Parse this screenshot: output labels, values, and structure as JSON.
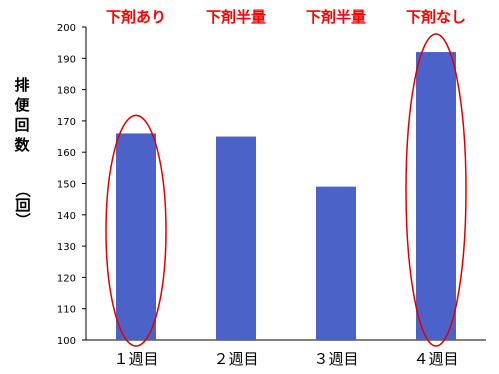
{
  "chart_data": {
    "type": "bar",
    "categories": [
      "１週目",
      "２週目",
      "３週目",
      "４週目"
    ],
    "values": [
      166,
      165,
      149,
      192
    ],
    "annotations": [
      "下剤あり",
      "下剤半量",
      "下剤半量",
      "下剤なし"
    ],
    "highlighted_categories": [
      "１週目",
      "４週目"
    ],
    "ylabel_main": "排便回数",
    "ylabel_unit": "（回）",
    "ylim": [
      100,
      200
    ],
    "yticks": [
      100,
      110,
      120,
      130,
      140,
      150,
      160,
      170,
      180,
      190,
      200
    ],
    "grid": false,
    "colors": {
      "bar": "#4b63c9",
      "annotation_text": "#ff0000",
      "highlight_ellipse": "#e00000"
    }
  }
}
